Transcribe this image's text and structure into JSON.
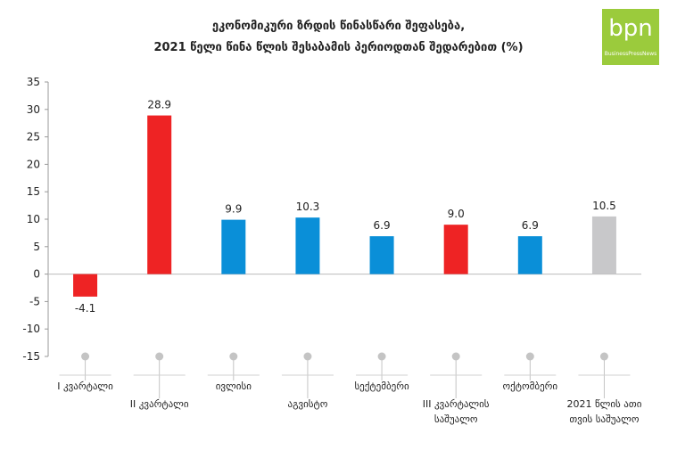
{
  "header": {
    "title_line1": "ეკონომიკური ზრდის წინასწარი შეფასება,",
    "title_line2": "2021 წელი წინა წლის შესაბამის პერიოდთან შედარებით (%)"
  },
  "logo": {
    "text": "bpn",
    "subtext": "BusinessPressNews"
  },
  "colors": {
    "red": "#ee2324",
    "blue": "#0a8fd8",
    "gray": "#c8c8ca",
    "axis": "#999999",
    "grid": "#bbbbbb"
  },
  "chart_data": {
    "type": "bar",
    "title": "ეკონომიკური ზრდის წინასწარი შეფასება, 2021 წელი წინა წლის შესაბამის პერიოდთან შედარებით (%)",
    "xlabel": "",
    "ylabel": "",
    "ylim": [
      -15,
      35
    ],
    "yticks": [
      35,
      30,
      25,
      20,
      15,
      10,
      5,
      0,
      -5,
      -10,
      -15
    ],
    "categories": [
      [
        "I კვარტალი"
      ],
      [
        "II კვარტალი"
      ],
      [
        "ივლისი"
      ],
      [
        "აგვისტო"
      ],
      [
        "სექტემბერი"
      ],
      [
        "III კვარტალის",
        "საშუალო"
      ],
      [
        "ოქტომბერი"
      ],
      [
        "2021 წლის ათი",
        "თვის საშუალო"
      ]
    ],
    "values": [
      -4.1,
      28.9,
      9.9,
      10.3,
      6.9,
      9.0,
      6.9,
      10.5
    ],
    "value_labels": [
      "-4.1",
      "28.9",
      "9.9",
      "10.3",
      "6.9",
      "9.0",
      "6.9",
      "10.5"
    ],
    "bar_colors": [
      "red",
      "red",
      "blue",
      "blue",
      "blue",
      "red",
      "blue",
      "gray"
    ],
    "grid": false
  }
}
